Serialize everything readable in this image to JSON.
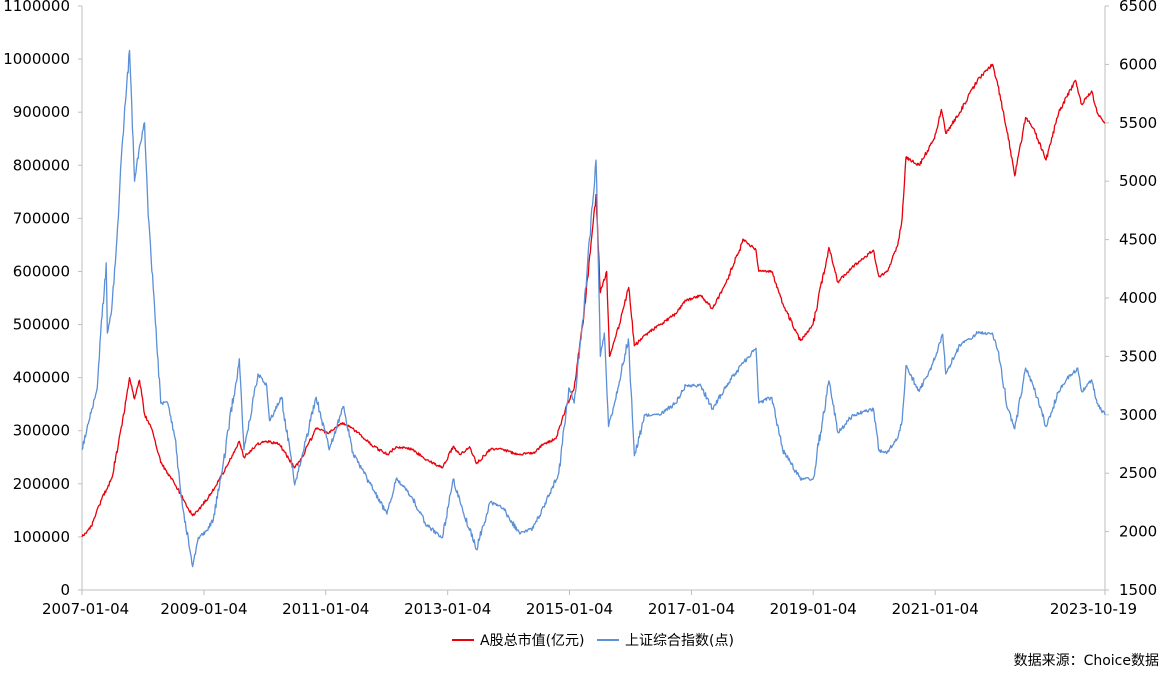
{
  "chart_data": {
    "type": "line",
    "title": "",
    "x_ticks": [
      "2007-01-04",
      "2009-01-04",
      "2011-01-04",
      "2013-01-04",
      "2015-01-04",
      "2017-01-04",
      "2019-01-04",
      "2021-01-04",
      "2023-10-19"
    ],
    "y_left": {
      "ticks": [
        0,
        100000,
        200000,
        300000,
        400000,
        500000,
        600000,
        700000,
        800000,
        900000,
        1000000,
        1100000
      ],
      "range": [
        0,
        1100000
      ]
    },
    "y_right": {
      "ticks": [
        1500,
        2000,
        2500,
        3000,
        3500,
        4000,
        4500,
        5000,
        5500,
        6000,
        6500
      ],
      "range": [
        1500,
        6500
      ]
    },
    "grid": false,
    "legend_position": "bottom",
    "series": [
      {
        "name": "A股总市值(亿元)",
        "axis": "left",
        "color": "#e8000b",
        "points": [
          [
            "2007-01-04",
            100000
          ],
          [
            "2007-03-01",
            120000
          ],
          [
            "2007-05-01",
            170000
          ],
          [
            "2007-07-01",
            210000
          ],
          [
            "2007-09-01",
            310000
          ],
          [
            "2007-10-16",
            400000
          ],
          [
            "2007-11-15",
            360000
          ],
          [
            "2007-12-15",
            395000
          ],
          [
            "2008-01-15",
            330000
          ],
          [
            "2008-03-01",
            300000
          ],
          [
            "2008-04-20",
            240000
          ],
          [
            "2008-06-01",
            220000
          ],
          [
            "2008-08-01",
            190000
          ],
          [
            "2008-10-28",
            140000
          ],
          [
            "2008-12-01",
            150000
          ],
          [
            "2009-02-01",
            175000
          ],
          [
            "2009-04-01",
            205000
          ],
          [
            "2009-06-01",
            240000
          ],
          [
            "2009-08-04",
            280000
          ],
          [
            "2009-09-01",
            250000
          ],
          [
            "2009-11-20",
            275000
          ],
          [
            "2010-01-15",
            280000
          ],
          [
            "2010-04-01",
            275000
          ],
          [
            "2010-07-02",
            230000
          ],
          [
            "2010-08-15",
            250000
          ],
          [
            "2010-11-08",
            305000
          ],
          [
            "2011-01-15",
            295000
          ],
          [
            "2011-04-15",
            315000
          ],
          [
            "2011-07-01",
            300000
          ],
          [
            "2011-10-20",
            270000
          ],
          [
            "2012-01-10",
            255000
          ],
          [
            "2012-03-01",
            270000
          ],
          [
            "2012-06-01",
            265000
          ],
          [
            "2012-09-01",
            245000
          ],
          [
            "2012-12-04",
            230000
          ],
          [
            "2013-02-05",
            270000
          ],
          [
            "2013-03-20",
            255000
          ],
          [
            "2013-05-15",
            270000
          ],
          [
            "2013-06-27",
            238000
          ],
          [
            "2013-09-15",
            265000
          ],
          [
            "2013-12-01",
            265000
          ],
          [
            "2014-03-01",
            255000
          ],
          [
            "2014-06-01",
            258000
          ],
          [
            "2014-08-01",
            275000
          ],
          [
            "2014-10-15",
            285000
          ],
          [
            "2014-12-10",
            340000
          ],
          [
            "2015-02-01",
            380000
          ],
          [
            "2015-04-01",
            520000
          ],
          [
            "2015-06-12",
            745000
          ],
          [
            "2015-07-08",
            560000
          ],
          [
            "2015-08-15",
            600000
          ],
          [
            "2015-09-01",
            440000
          ],
          [
            "2015-10-30",
            500000
          ],
          [
            "2015-12-25",
            570000
          ],
          [
            "2016-01-28",
            460000
          ],
          [
            "2016-04-01",
            480000
          ],
          [
            "2016-07-01",
            500000
          ],
          [
            "2016-10-01",
            520000
          ],
          [
            "2016-12-01",
            545000
          ],
          [
            "2017-03-01",
            555000
          ],
          [
            "2017-05-10",
            530000
          ],
          [
            "2017-08-01",
            580000
          ],
          [
            "2017-11-13",
            660000
          ],
          [
            "2018-01-26",
            640000
          ],
          [
            "2018-02-12",
            600000
          ],
          [
            "2018-05-01",
            600000
          ],
          [
            "2018-07-05",
            540000
          ],
          [
            "2018-10-19",
            470000
          ],
          [
            "2019-01-03",
            500000
          ],
          [
            "2019-04-08",
            645000
          ],
          [
            "2019-06-01",
            580000
          ],
          [
            "2019-09-01",
            610000
          ],
          [
            "2019-12-31",
            640000
          ],
          [
            "2020-02-03",
            590000
          ],
          [
            "2020-03-23",
            600000
          ],
          [
            "2020-05-25",
            650000
          ],
          [
            "2020-06-20",
            700000
          ],
          [
            "2020-07-13",
            815000
          ],
          [
            "2020-09-30",
            800000
          ],
          [
            "2020-12-31",
            850000
          ],
          [
            "2021-02-10",
            905000
          ],
          [
            "2021-03-09",
            860000
          ],
          [
            "2021-06-01",
            900000
          ],
          [
            "2021-09-14",
            960000
          ],
          [
            "2021-12-13",
            990000
          ],
          [
            "2022-01-15",
            950000
          ],
          [
            "2022-03-15",
            860000
          ],
          [
            "2022-04-26",
            780000
          ],
          [
            "2022-06-30",
            890000
          ],
          [
            "2022-08-15",
            870000
          ],
          [
            "2022-10-31",
            810000
          ],
          [
            "2023-01-15",
            900000
          ],
          [
            "2023-04-25",
            960000
          ],
          [
            "2023-06-01",
            915000
          ],
          [
            "2023-07-31",
            940000
          ],
          [
            "2023-09-01",
            900000
          ],
          [
            "2023-10-19",
            880000
          ]
        ]
      },
      {
        "name": "上证综合指数(点)",
        "axis": "right",
        "color": "#5b8fd6",
        "points": [
          [
            "2007-01-04",
            2700
          ],
          [
            "2007-02-15",
            2950
          ],
          [
            "2007-04-01",
            3200
          ],
          [
            "2007-05-29",
            4300
          ],
          [
            "2007-06-05",
            3700
          ],
          [
            "2007-07-01",
            3900
          ],
          [
            "2007-08-01",
            4500
          ],
          [
            "2007-09-01",
            5300
          ],
          [
            "2007-10-16",
            6120
          ],
          [
            "2007-11-15",
            5000
          ],
          [
            "2007-12-15",
            5300
          ],
          [
            "2008-01-14",
            5500
          ],
          [
            "2008-02-05",
            4700
          ],
          [
            "2008-03-15",
            3900
          ],
          [
            "2008-04-20",
            3100
          ],
          [
            "2008-06-01",
            3100
          ],
          [
            "2008-07-15",
            2800
          ],
          [
            "2008-08-20",
            2300
          ],
          [
            "2008-10-28",
            1700
          ],
          [
            "2008-12-01",
            1950
          ],
          [
            "2009-01-15",
            2000
          ],
          [
            "2009-03-01",
            2100
          ],
          [
            "2009-05-01",
            2600
          ],
          [
            "2009-08-04",
            3480
          ],
          [
            "2009-09-01",
            2700
          ],
          [
            "2009-11-24",
            3350
          ],
          [
            "2010-01-15",
            3250
          ],
          [
            "2010-02-01",
            2950
          ],
          [
            "2010-04-15",
            3150
          ],
          [
            "2010-07-02",
            2400
          ],
          [
            "2010-08-15",
            2650
          ],
          [
            "2010-11-08",
            3150
          ],
          [
            "2011-01-25",
            2700
          ],
          [
            "2011-04-18",
            3070
          ],
          [
            "2011-06-20",
            2650
          ],
          [
            "2011-10-20",
            2350
          ],
          [
            "2012-01-06",
            2150
          ],
          [
            "2012-03-01",
            2450
          ],
          [
            "2012-06-01",
            2300
          ],
          [
            "2012-09-01",
            2050
          ],
          [
            "2012-12-04",
            1950
          ],
          [
            "2013-02-06",
            2450
          ],
          [
            "2013-03-20",
            2250
          ],
          [
            "2013-06-25",
            1850
          ],
          [
            "2013-09-15",
            2250
          ],
          [
            "2013-12-01",
            2200
          ],
          [
            "2014-03-12",
            1980
          ],
          [
            "2014-06-01",
            2030
          ],
          [
            "2014-09-01",
            2300
          ],
          [
            "2014-11-01",
            2500
          ],
          [
            "2014-12-31",
            3230
          ],
          [
            "2015-02-01",
            3100
          ],
          [
            "2015-04-01",
            3900
          ],
          [
            "2015-06-12",
            5180
          ],
          [
            "2015-07-08",
            3500
          ],
          [
            "2015-08-01",
            3700
          ],
          [
            "2015-08-26",
            2900
          ],
          [
            "2015-10-01",
            3100
          ],
          [
            "2015-12-23",
            3650
          ],
          [
            "2016-01-28",
            2650
          ],
          [
            "2016-04-01",
            3000
          ],
          [
            "2016-07-01",
            3000
          ],
          [
            "2016-10-01",
            3100
          ],
          [
            "2016-12-01",
            3250
          ],
          [
            "2017-03-01",
            3250
          ],
          [
            "2017-05-10",
            3050
          ],
          [
            "2017-08-01",
            3250
          ],
          [
            "2017-11-13",
            3450
          ],
          [
            "2018-01-26",
            3570
          ],
          [
            "2018-02-12",
            3100
          ],
          [
            "2018-05-01",
            3150
          ],
          [
            "2018-07-05",
            2700
          ],
          [
            "2018-10-19",
            2450
          ],
          [
            "2019-01-03",
            2450
          ],
          [
            "2019-04-08",
            3290
          ],
          [
            "2019-06-01",
            2850
          ],
          [
            "2019-09-01",
            3000
          ],
          [
            "2019-12-31",
            3050
          ],
          [
            "2020-02-03",
            2690
          ],
          [
            "2020-03-23",
            2680
          ],
          [
            "2020-05-25",
            2800
          ],
          [
            "2020-06-20",
            2950
          ],
          [
            "2020-07-13",
            3420
          ],
          [
            "2020-09-30",
            3200
          ],
          [
            "2020-12-31",
            3470
          ],
          [
            "2021-02-18",
            3690
          ],
          [
            "2021-03-09",
            3350
          ],
          [
            "2021-06-01",
            3600
          ],
          [
            "2021-09-14",
            3700
          ],
          [
            "2021-12-13",
            3700
          ],
          [
            "2022-01-15",
            3550
          ],
          [
            "2022-03-15",
            3050
          ],
          [
            "2022-04-26",
            2880
          ],
          [
            "2022-06-30",
            3400
          ],
          [
            "2022-08-15",
            3250
          ],
          [
            "2022-10-31",
            2900
          ],
          [
            "2023-01-15",
            3200
          ],
          [
            "2023-03-01",
            3300
          ],
          [
            "2023-05-08",
            3400
          ],
          [
            "2023-06-01",
            3200
          ],
          [
            "2023-07-31",
            3300
          ],
          [
            "2023-09-01",
            3100
          ],
          [
            "2023-10-19",
            3000
          ]
        ]
      }
    ]
  },
  "source_note": "数据来源：Choice数据"
}
